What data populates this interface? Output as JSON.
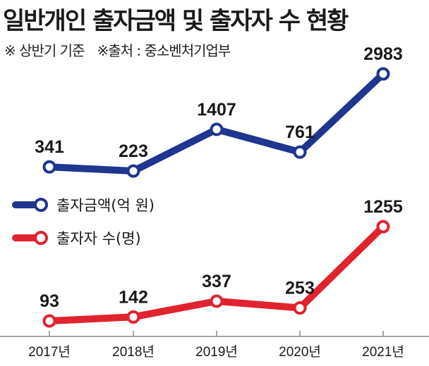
{
  "title": "일반개인 출자금액 및 출자자 수 현황",
  "notes": [
    "※ 상반기 기준",
    "※출처 : 중소벤처기업부"
  ],
  "colors": {
    "series1": "#1e3690",
    "series2": "#e0232e",
    "axis": "#888888"
  },
  "chart_data": {
    "type": "line",
    "categories": [
      "2017년",
      "2018년",
      "2019년",
      "2020년",
      "2021년"
    ],
    "series": [
      {
        "name": "출자금액(억 원)",
        "values": [
          341,
          223,
          1407,
          761,
          2983
        ]
      },
      {
        "name": "출자자 수(명)",
        "values": [
          93,
          142,
          337,
          253,
          1255
        ]
      }
    ],
    "legend": "center-left",
    "grid": false
  }
}
